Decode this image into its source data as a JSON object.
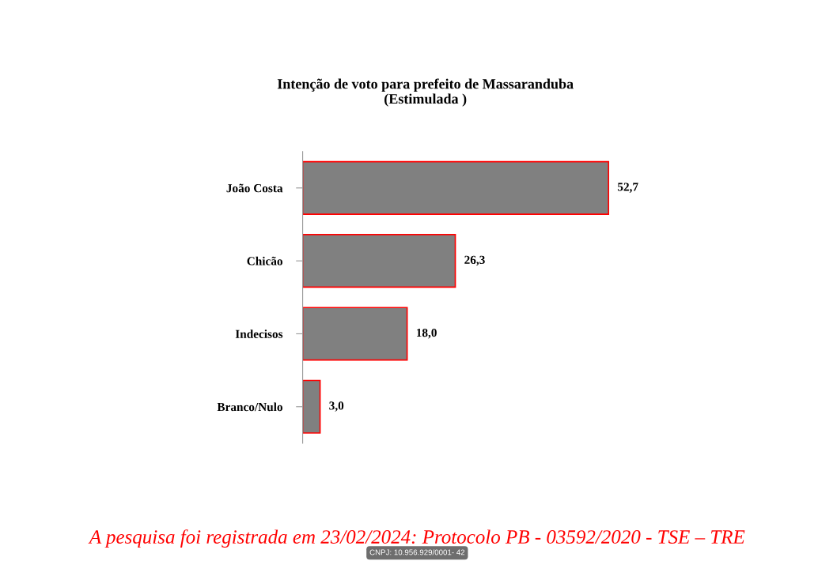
{
  "chart_data": {
    "type": "bar",
    "orientation": "horizontal",
    "title": "Intenção de voto para prefeito de Massaranduba\n(Estimulada )",
    "categories": [
      "João Costa",
      "Chicão",
      "Indecisos",
      "Branco/Nulo"
    ],
    "values": [
      52.7,
      26.3,
      18.0,
      3.0
    ],
    "value_labels": [
      "52,7",
      "26,3",
      "18,0",
      "3,0"
    ],
    "color": "#808080",
    "annotations": [
      "A pesquisa foi registrada em 23/02/2024: Protocolo PB - 03592/2020 - TSE – TRE",
      "CNPJ: 10.956.929/0001- 42"
    ]
  }
}
